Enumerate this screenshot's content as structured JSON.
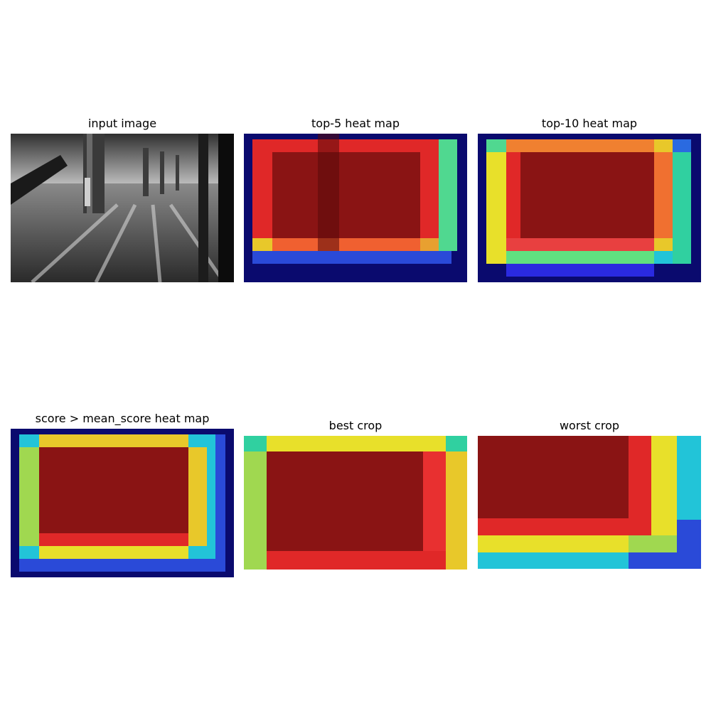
{
  "figure": {
    "panels": [
      {
        "title": "input image",
        "kind": "photo"
      },
      {
        "title": "top-5 heat map",
        "kind": "heatmap",
        "scheme": "top5"
      },
      {
        "title": "top-10 heat map",
        "kind": "heatmap",
        "scheme": "top10"
      },
      {
        "title": "score > mean_score heat map",
        "kind": "heatmap",
        "scheme": "mean"
      },
      {
        "title": "best crop",
        "kind": "heatmap",
        "scheme": "best"
      },
      {
        "title": "worst crop",
        "kind": "heatmap",
        "scheme": "worst"
      }
    ]
  },
  "chart_data": {
    "type": "heatmap",
    "colormap": "jet",
    "overlay_on": "grayscale photo of a hall with pillars and a walking figure",
    "colors": {
      "dark_blue": "#0a0a6e",
      "blue": "#2a4ad8",
      "cyan": "#22c4d8",
      "green": "#50d890",
      "yellow": "#e8e02a",
      "orange": "#f09040",
      "red": "#e02828",
      "dark_red": "#8a1414"
    }
  }
}
